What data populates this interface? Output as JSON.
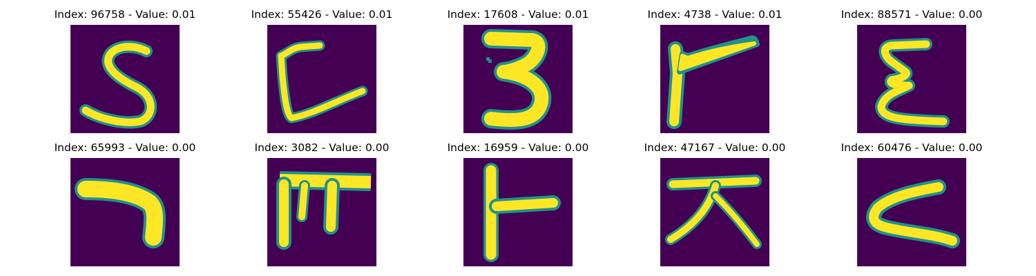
{
  "figure": {
    "panels": [
      {
        "index": "96758",
        "value": "0.01",
        "title": "Index: 96758 - Value: 0.01",
        "glyph": "handwritten-s"
      },
      {
        "index": "55426",
        "value": "0.01",
        "title": "Index: 55426 - Value: 0.01",
        "glyph": "handwritten-bracket-stroke"
      },
      {
        "index": "17608",
        "value": "0.01",
        "title": "Index: 17608 - Value: 0.01",
        "glyph": "handwritten-3"
      },
      {
        "index": "4738",
        "value": "0.01",
        "title": "Index: 4738 - Value: 0.01",
        "glyph": "handwritten-flag-stroke"
      },
      {
        "index": "88571",
        "value": "0.00",
        "title": "Index: 88571 - Value: 0.00",
        "glyph": "handwritten-sigma-stroke"
      },
      {
        "index": "65993",
        "value": "0.00",
        "title": "Index: 65993 - Value: 0.00",
        "glyph": "hangul-giyeok"
      },
      {
        "index": "3082",
        "value": "0.00",
        "title": "Index: 3082 - Value: 0.00",
        "glyph": "hangul-pieup-like"
      },
      {
        "index": "16959",
        "value": "0.00",
        "title": "Index: 16959 - Value: 0.00",
        "glyph": "hangul-a-vowel"
      },
      {
        "index": "47167",
        "value": "0.00",
        "title": "Index: 47167 - Value: 0.00",
        "glyph": "hangul-jieut"
      },
      {
        "index": "60476",
        "value": "0.00",
        "title": "Index: 60476 - Value: 0.00",
        "glyph": "handwritten-c"
      }
    ],
    "colors": {
      "background": "#440154",
      "stroke_core": "#fde725",
      "stroke_edge": "#21918c"
    }
  }
}
